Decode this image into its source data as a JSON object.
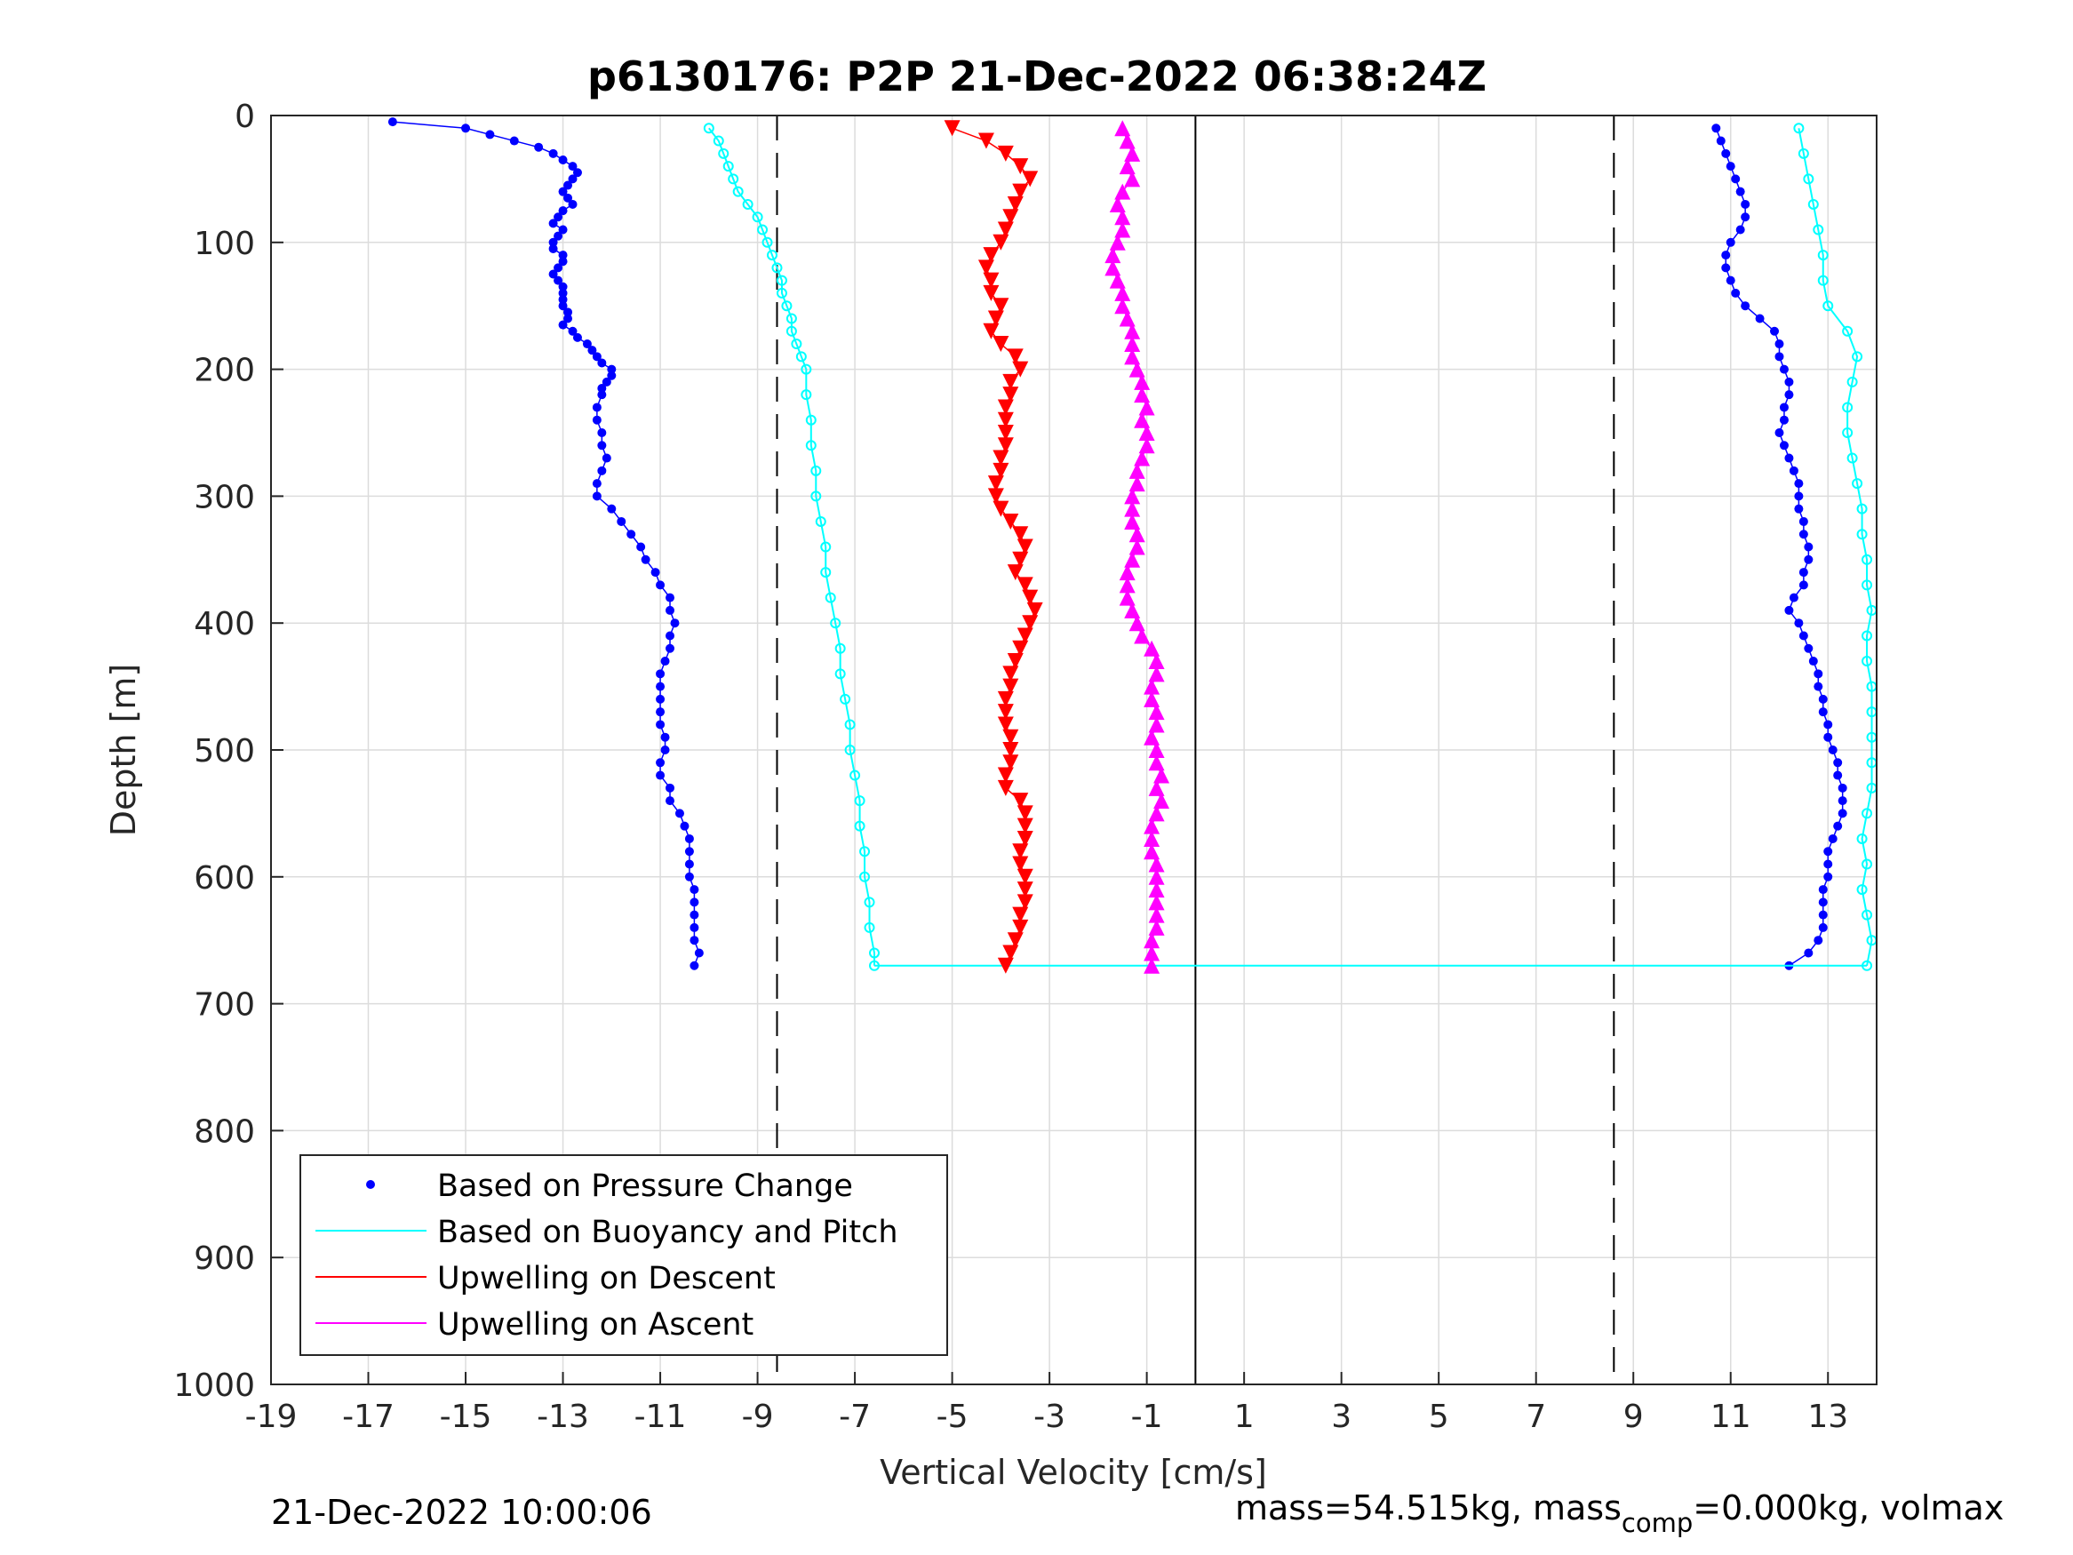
{
  "chart_data": {
    "type": "scatter",
    "title": "p6130176: P2P 21-Dec-2022 06:38:24Z",
    "xlabel": "Vertical Velocity [cm/s]",
    "ylabel": "Depth [m]",
    "xlim": [
      -19,
      14
    ],
    "ylim": [
      0,
      1000
    ],
    "y_reversed": true,
    "grid": true,
    "x_ticks": [
      -19,
      -17,
      -15,
      -13,
      -11,
      -9,
      -7,
      -5,
      -3,
      -1,
      1,
      3,
      5,
      7,
      9,
      11,
      13
    ],
    "y_ticks": [
      0,
      100,
      200,
      300,
      400,
      500,
      600,
      700,
      800,
      900,
      1000
    ],
    "reference_lines": [
      {
        "style": "dashed",
        "x": -8.6
      },
      {
        "style": "dashed",
        "x": 8.6
      },
      {
        "style": "solid",
        "x": 0
      }
    ],
    "legend_position": "bottom-left",
    "series": [
      {
        "name": "Based on Pressure Change",
        "color": "#0000ff",
        "marker": "dot",
        "descent_depth": [
          5,
          10,
          15,
          20,
          25,
          30,
          35,
          40,
          45,
          50,
          55,
          60,
          65,
          70,
          75,
          80,
          85,
          90,
          95,
          100,
          105,
          110,
          115,
          120,
          125,
          130,
          135,
          140,
          145,
          150,
          155,
          160,
          165,
          170,
          175,
          180,
          185,
          190,
          195,
          200,
          205,
          210,
          215,
          220,
          230,
          240,
          250,
          260,
          270,
          280,
          290,
          300,
          310,
          320,
          330,
          340,
          350,
          360,
          370,
          380,
          390,
          400,
          410,
          420,
          430,
          440,
          450,
          460,
          470,
          480,
          490,
          500,
          510,
          520,
          530,
          540,
          550,
          560,
          570,
          580,
          590,
          600,
          610,
          620,
          630,
          640,
          650,
          660,
          670
        ],
        "descent_velocity": [
          -16.5,
          -15.0,
          -14.5,
          -14.0,
          -13.5,
          -13.2,
          -13.0,
          -12.8,
          -12.7,
          -12.8,
          -12.9,
          -13.0,
          -12.9,
          -12.8,
          -13.0,
          -13.1,
          -13.2,
          -13.0,
          -13.1,
          -13.2,
          -13.2,
          -13.0,
          -13.0,
          -13.1,
          -13.2,
          -13.1,
          -13.0,
          -13.0,
          -13.0,
          -13.0,
          -12.9,
          -12.9,
          -13.0,
          -12.8,
          -12.7,
          -12.5,
          -12.4,
          -12.3,
          -12.2,
          -12.0,
          -12.0,
          -12.1,
          -12.2,
          -12.2,
          -12.3,
          -12.3,
          -12.2,
          -12.2,
          -12.1,
          -12.2,
          -12.3,
          -12.3,
          -12.0,
          -11.8,
          -11.6,
          -11.4,
          -11.3,
          -11.1,
          -11.0,
          -10.8,
          -10.8,
          -10.7,
          -10.8,
          -10.8,
          -10.9,
          -11.0,
          -11.0,
          -11.0,
          -11.0,
          -11.0,
          -10.9,
          -10.9,
          -11.0,
          -11.0,
          -10.8,
          -10.8,
          -10.6,
          -10.5,
          -10.4,
          -10.4,
          -10.4,
          -10.4,
          -10.3,
          -10.3,
          -10.3,
          -10.3,
          -10.3,
          -10.2,
          -10.3
        ],
        "ascent_depth": [
          670,
          660,
          650,
          640,
          630,
          620,
          610,
          600,
          590,
          580,
          570,
          560,
          550,
          540,
          530,
          520,
          510,
          500,
          490,
          480,
          470,
          460,
          450,
          440,
          430,
          420,
          410,
          400,
          390,
          380,
          370,
          360,
          350,
          340,
          330,
          320,
          310,
          300,
          290,
          280,
          270,
          260,
          250,
          240,
          230,
          220,
          210,
          200,
          190,
          180,
          170,
          160,
          150,
          140,
          130,
          120,
          110,
          100,
          90,
          80,
          70,
          60,
          50,
          40,
          30,
          20,
          10
        ],
        "ascent_velocity": [
          12.2,
          12.6,
          12.8,
          12.9,
          12.9,
          12.9,
          12.9,
          13.0,
          13.0,
          13.0,
          13.1,
          13.2,
          13.3,
          13.3,
          13.3,
          13.2,
          13.2,
          13.1,
          13.0,
          13.0,
          12.9,
          12.9,
          12.8,
          12.8,
          12.7,
          12.6,
          12.5,
          12.4,
          12.2,
          12.3,
          12.5,
          12.5,
          12.6,
          12.6,
          12.5,
          12.5,
          12.4,
          12.4,
          12.4,
          12.3,
          12.2,
          12.1,
          12.0,
          12.1,
          12.1,
          12.2,
          12.2,
          12.1,
          12.0,
          12.0,
          11.9,
          11.6,
          11.3,
          11.1,
          11.0,
          10.9,
          10.9,
          11.0,
          11.2,
          11.3,
          11.3,
          11.2,
          11.1,
          11.0,
          10.9,
          10.8,
          10.7
        ]
      },
      {
        "name": "Based on Buoyancy and Pitch",
        "color": "#00ffff",
        "marker": "circle",
        "descent_depth": [
          10,
          20,
          30,
          40,
          50,
          60,
          70,
          80,
          90,
          100,
          110,
          120,
          130,
          140,
          150,
          160,
          170,
          180,
          190,
          200,
          220,
          240,
          260,
          280,
          300,
          320,
          340,
          360,
          380,
          400,
          420,
          440,
          460,
          480,
          500,
          520,
          540,
          560,
          580,
          600,
          620,
          640,
          660,
          670
        ],
        "descent_velocity": [
          -10.0,
          -9.8,
          -9.7,
          -9.6,
          -9.5,
          -9.4,
          -9.2,
          -9.0,
          -8.9,
          -8.8,
          -8.7,
          -8.6,
          -8.5,
          -8.5,
          -8.4,
          -8.3,
          -8.3,
          -8.2,
          -8.1,
          -8.0,
          -8.0,
          -7.9,
          -7.9,
          -7.8,
          -7.8,
          -7.7,
          -7.6,
          -7.6,
          -7.5,
          -7.4,
          -7.3,
          -7.3,
          -7.2,
          -7.1,
          -7.1,
          -7.0,
          -6.9,
          -6.9,
          -6.8,
          -6.8,
          -6.7,
          -6.7,
          -6.6,
          -6.6
        ],
        "ascent_depth": [
          670,
          650,
          630,
          610,
          590,
          570,
          550,
          530,
          510,
          490,
          470,
          450,
          430,
          410,
          390,
          370,
          350,
          330,
          310,
          290,
          270,
          250,
          230,
          210,
          190,
          170,
          150,
          130,
          110,
          90,
          70,
          50,
          30,
          10
        ],
        "ascent_velocity": [
          13.8,
          13.9,
          13.8,
          13.7,
          13.8,
          13.7,
          13.8,
          13.9,
          13.9,
          13.9,
          13.9,
          13.9,
          13.8,
          13.8,
          13.9,
          13.8,
          13.8,
          13.7,
          13.7,
          13.6,
          13.5,
          13.4,
          13.4,
          13.5,
          13.6,
          13.4,
          13.0,
          12.9,
          12.9,
          12.8,
          12.7,
          12.6,
          12.5,
          12.4
        ]
      },
      {
        "name": "Upwelling on Descent",
        "color": "#ff0000",
        "marker": "triangle-down",
        "depth": [
          10,
          20,
          30,
          40,
          50,
          60,
          70,
          80,
          90,
          100,
          110,
          120,
          130,
          140,
          150,
          160,
          170,
          180,
          190,
          200,
          210,
          220,
          230,
          240,
          250,
          260,
          270,
          280,
          290,
          300,
          310,
          320,
          330,
          340,
          350,
          360,
          370,
          380,
          390,
          400,
          410,
          420,
          430,
          440,
          450,
          460,
          470,
          480,
          490,
          500,
          510,
          520,
          530,
          540,
          550,
          560,
          570,
          580,
          590,
          600,
          610,
          620,
          630,
          640,
          650,
          660,
          670
        ],
        "velocity": [
          -5.0,
          -4.3,
          -3.9,
          -3.6,
          -3.4,
          -3.6,
          -3.7,
          -3.8,
          -3.9,
          -4.0,
          -4.2,
          -4.3,
          -4.2,
          -4.2,
          -4.0,
          -4.1,
          -4.2,
          -4.0,
          -3.7,
          -3.6,
          -3.8,
          -3.8,
          -3.9,
          -3.9,
          -3.9,
          -3.9,
          -4.0,
          -4.0,
          -4.1,
          -4.1,
          -4.0,
          -3.8,
          -3.6,
          -3.5,
          -3.6,
          -3.7,
          -3.5,
          -3.4,
          -3.3,
          -3.4,
          -3.5,
          -3.6,
          -3.7,
          -3.8,
          -3.8,
          -3.9,
          -3.9,
          -3.9,
          -3.8,
          -3.8,
          -3.8,
          -3.9,
          -3.9,
          -3.6,
          -3.5,
          -3.5,
          -3.5,
          -3.6,
          -3.6,
          -3.5,
          -3.5,
          -3.5,
          -3.6,
          -3.6,
          -3.7,
          -3.8,
          -3.9
        ]
      },
      {
        "name": "Upwelling on Ascent",
        "color": "#ff00ff",
        "marker": "triangle-up",
        "depth": [
          10,
          20,
          30,
          40,
          50,
          60,
          70,
          80,
          90,
          100,
          110,
          120,
          130,
          140,
          150,
          160,
          170,
          180,
          190,
          200,
          210,
          220,
          230,
          240,
          250,
          260,
          270,
          280,
          290,
          300,
          310,
          320,
          330,
          340,
          350,
          360,
          370,
          380,
          390,
          400,
          410,
          420,
          430,
          440,
          450,
          460,
          470,
          480,
          490,
          500,
          510,
          520,
          530,
          540,
          550,
          560,
          570,
          580,
          590,
          600,
          610,
          620,
          630,
          640,
          650,
          660,
          670
        ],
        "velocity": [
          -1.5,
          -1.4,
          -1.3,
          -1.4,
          -1.3,
          -1.5,
          -1.6,
          -1.5,
          -1.5,
          -1.6,
          -1.7,
          -1.7,
          -1.6,
          -1.5,
          -1.5,
          -1.4,
          -1.3,
          -1.3,
          -1.3,
          -1.2,
          -1.1,
          -1.1,
          -1.0,
          -1.1,
          -1.0,
          -1.0,
          -1.1,
          -1.2,
          -1.2,
          -1.3,
          -1.3,
          -1.3,
          -1.2,
          -1.2,
          -1.3,
          -1.4,
          -1.4,
          -1.4,
          -1.3,
          -1.2,
          -1.1,
          -0.9,
          -0.8,
          -0.8,
          -0.9,
          -0.9,
          -0.8,
          -0.8,
          -0.9,
          -0.8,
          -0.8,
          -0.7,
          -0.8,
          -0.7,
          -0.8,
          -0.9,
          -0.9,
          -0.9,
          -0.8,
          -0.8,
          -0.8,
          -0.8,
          -0.8,
          -0.8,
          -0.9,
          -0.9,
          -0.9
        ]
      }
    ],
    "legend": [
      {
        "label": "Based on Pressure Change",
        "color": "#0000ff",
        "marker": "dot"
      },
      {
        "label": "Based on Buoyancy and Pitch",
        "color": "#00ffff",
        "marker": "line"
      },
      {
        "label": "Upwelling on Descent",
        "color": "#ff0000",
        "marker": "line"
      },
      {
        "label": "Upwelling on Ascent",
        "color": "#ff00ff",
        "marker": "line"
      }
    ],
    "footer_left": "21-Dec-2022 10:00:06",
    "footer_right_prefix": "mass=54.515kg, mass",
    "footer_right_sub": "comp",
    "footer_right_suffix": "=0.000kg, volmax"
  }
}
